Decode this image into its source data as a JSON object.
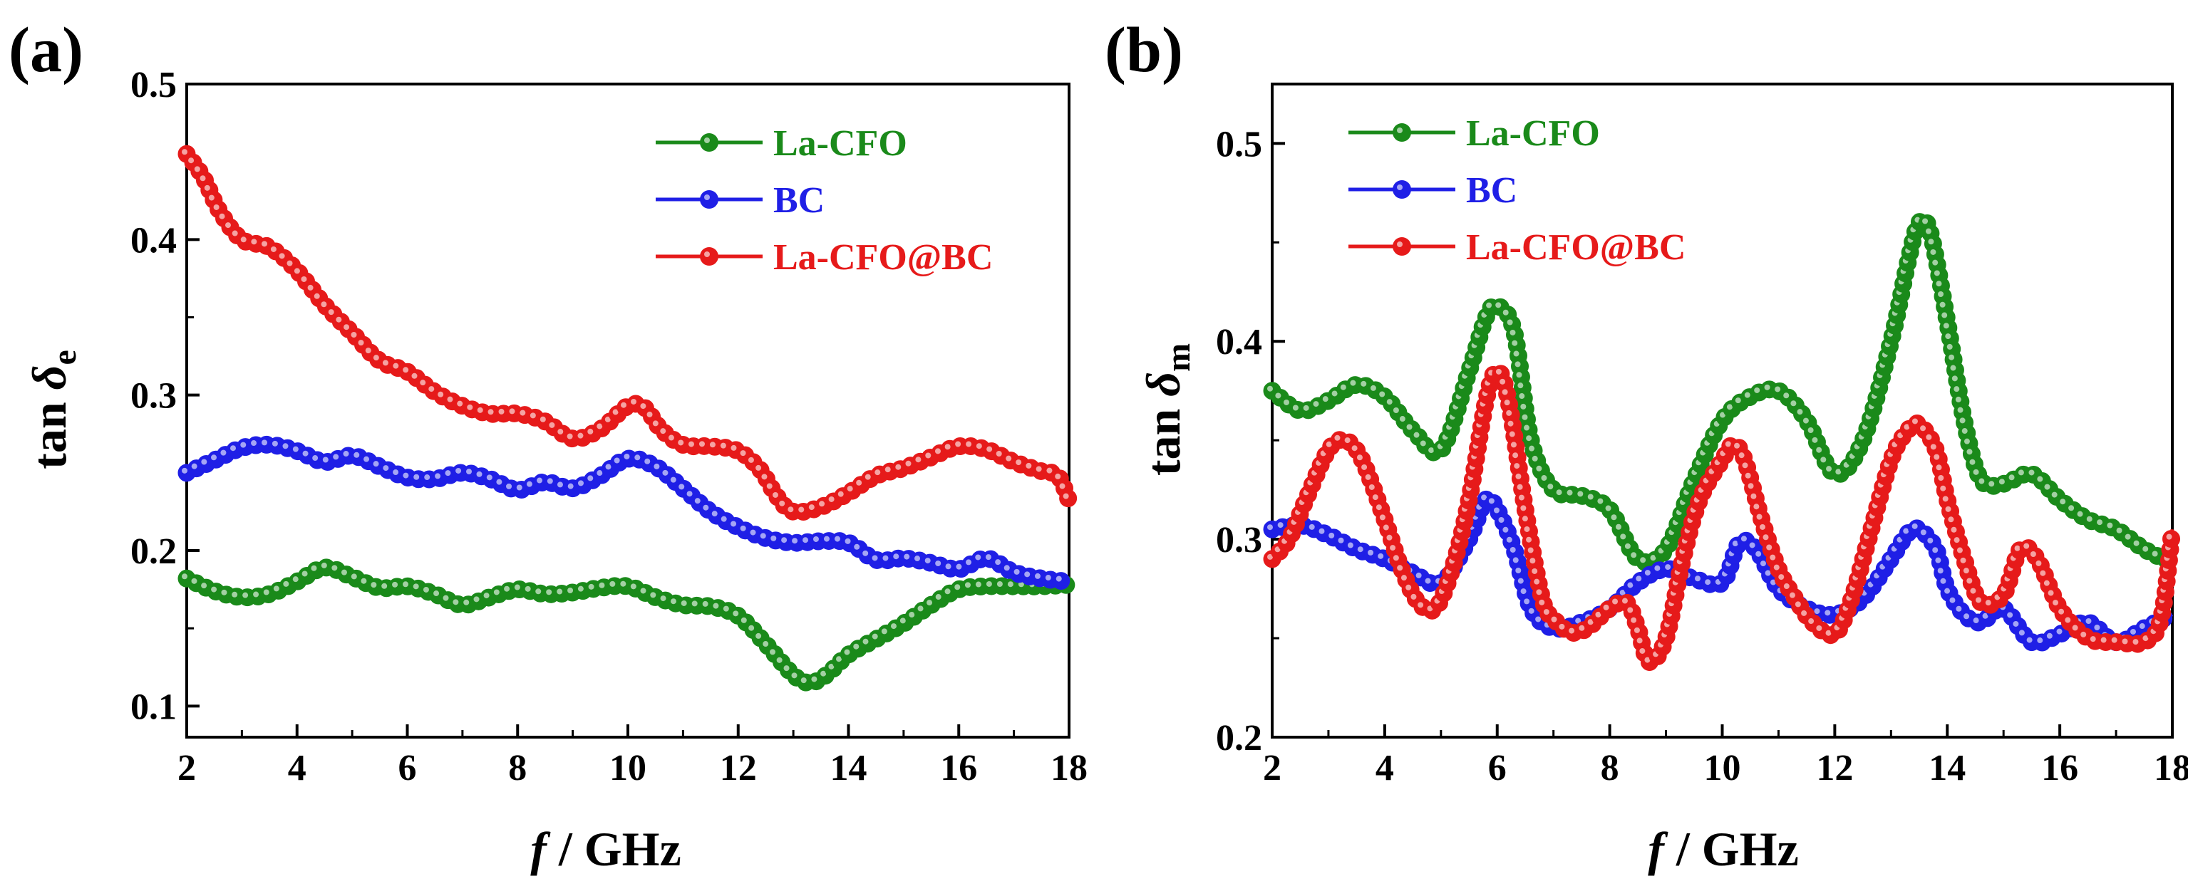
{
  "colors": {
    "La-CFO": "#1a8a1a",
    "BC": "#1f1fe6",
    "La-CFO@BC": "#e61a1a"
  },
  "chart_data": [
    {
      "type": "line",
      "panel_label": "(a)",
      "ylabel_prefix": "tan ",
      "ylabel_symbol": "δ",
      "ylabel_sub": "e",
      "xlabel_symbol": "f",
      "xlabel_unit": " / GHz",
      "xlim": [
        2,
        18
      ],
      "ylim": [
        0.08,
        0.5
      ],
      "xticks": [
        2,
        4,
        6,
        8,
        10,
        12,
        14,
        16,
        18
      ],
      "xtick_labels": [
        "2",
        "4",
        "6",
        "8",
        "10",
        "12",
        "14",
        "16",
        "18"
      ],
      "yticks": [
        0.1,
        0.2,
        0.3,
        0.4,
        0.5
      ],
      "ytick_labels": [
        "0.1",
        "0.2",
        "0.3",
        "0.4",
        "0.5"
      ],
      "legend_position": "top-right",
      "series": [
        {
          "name": "La-CFO",
          "x": [
            2,
            2.5,
            3,
            3.5,
            4,
            4.5,
            5,
            5.5,
            6,
            6.5,
            7,
            7.5,
            8,
            8.5,
            9,
            9.5,
            10,
            10.5,
            11,
            11.5,
            12,
            12.5,
            13,
            13.3,
            13.6,
            14,
            14.5,
            15,
            15.5,
            16,
            16.5,
            17,
            17.5,
            18
          ],
          "y": [
            0.182,
            0.174,
            0.17,
            0.172,
            0.18,
            0.189,
            0.183,
            0.176,
            0.177,
            0.172,
            0.165,
            0.17,
            0.175,
            0.172,
            0.173,
            0.176,
            0.177,
            0.17,
            0.165,
            0.164,
            0.158,
            0.14,
            0.12,
            0.115,
            0.12,
            0.133,
            0.143,
            0.153,
            0.165,
            0.175,
            0.177,
            0.177,
            0.177,
            0.178
          ]
        },
        {
          "name": "BC",
          "x": [
            2,
            2.5,
            3,
            3.5,
            4,
            4.5,
            5,
            5.5,
            6,
            6.5,
            7,
            7.5,
            8,
            8.5,
            9,
            9.5,
            10,
            10.5,
            11,
            11.5,
            12,
            12.5,
            13,
            13.5,
            14,
            14.5,
            15,
            15.5,
            16,
            16.5,
            17,
            17.5,
            18
          ],
          "y": [
            0.25,
            0.258,
            0.266,
            0.268,
            0.264,
            0.257,
            0.261,
            0.254,
            0.247,
            0.246,
            0.25,
            0.246,
            0.239,
            0.244,
            0.24,
            0.248,
            0.259,
            0.254,
            0.24,
            0.225,
            0.215,
            0.208,
            0.205,
            0.206,
            0.205,
            0.194,
            0.195,
            0.192,
            0.188,
            0.195,
            0.186,
            0.182,
            0.18
          ]
        },
        {
          "name": "La-CFO@BC",
          "x": [
            2,
            2.3,
            2.6,
            3,
            3.5,
            4,
            4.5,
            5,
            5.5,
            6,
            6.5,
            7,
            7.5,
            8,
            8.5,
            9,
            9.5,
            10,
            10.3,
            10.6,
            11,
            11.5,
            12,
            12.4,
            12.7,
            13,
            13.5,
            14,
            14.5,
            15,
            15.5,
            16,
            16.5,
            17,
            17.5,
            17.8,
            18
          ],
          "y": [
            0.455,
            0.44,
            0.418,
            0.4,
            0.395,
            0.38,
            0.358,
            0.34,
            0.322,
            0.315,
            0.302,
            0.293,
            0.288,
            0.288,
            0.283,
            0.272,
            0.278,
            0.293,
            0.292,
            0.278,
            0.268,
            0.267,
            0.264,
            0.252,
            0.235,
            0.225,
            0.228,
            0.237,
            0.248,
            0.253,
            0.26,
            0.267,
            0.265,
            0.257,
            0.251,
            0.248,
            0.232
          ]
        }
      ]
    },
    {
      "type": "line",
      "panel_label": "(b)",
      "ylabel_prefix": "tan ",
      "ylabel_symbol": "δ",
      "ylabel_sub": "m",
      "xlabel_symbol": "f",
      "xlabel_unit": " / GHz",
      "xlim": [
        2,
        18
      ],
      "ylim": [
        0.2,
        0.53
      ],
      "xticks": [
        2,
        4,
        6,
        8,
        10,
        12,
        14,
        16,
        18
      ],
      "xtick_labels": [
        "2",
        "4",
        "6",
        "8",
        "10",
        "12",
        "14",
        "16",
        "18"
      ],
      "yticks": [
        0.2,
        0.3,
        0.4,
        0.5
      ],
      "ytick_labels": [
        "0.2",
        "0.3",
        "0.4",
        "0.5"
      ],
      "legend_position": "top-left",
      "series": [
        {
          "name": "La-CFO",
          "x": [
            2,
            2.5,
            3,
            3.5,
            4,
            4.5,
            5,
            5.5,
            5.8,
            6,
            6.3,
            6.6,
            7,
            7.5,
            8,
            8.5,
            9,
            9.5,
            10,
            10.5,
            11,
            11.5,
            12,
            12.5,
            13,
            13.3,
            13.5,
            13.7,
            14,
            14.3,
            14.6,
            15,
            15.5,
            16,
            16.5,
            17,
            17.5,
            18
          ],
          "y": [
            0.375,
            0.365,
            0.37,
            0.378,
            0.372,
            0.355,
            0.345,
            0.385,
            0.412,
            0.418,
            0.405,
            0.35,
            0.325,
            0.322,
            0.315,
            0.29,
            0.295,
            0.33,
            0.36,
            0.372,
            0.375,
            0.36,
            0.333,
            0.35,
            0.4,
            0.44,
            0.46,
            0.455,
            0.41,
            0.36,
            0.33,
            0.328,
            0.333,
            0.32,
            0.31,
            0.305,
            0.295,
            0.288
          ]
        },
        {
          "name": "BC",
          "x": [
            2,
            2.5,
            3,
            3.5,
            4,
            4.5,
            5,
            5.5,
            5.8,
            6,
            6.3,
            6.6,
            7,
            7.5,
            8,
            8.5,
            9,
            9.5,
            10,
            10.3,
            10.6,
            11,
            11.5,
            12,
            12.5,
            13,
            13.3,
            13.5,
            13.8,
            14,
            14.3,
            14.6,
            15,
            15.5,
            16,
            16.5,
            17,
            17.5,
            18
          ],
          "y": [
            0.305,
            0.307,
            0.302,
            0.295,
            0.29,
            0.283,
            0.278,
            0.3,
            0.32,
            0.315,
            0.295,
            0.265,
            0.255,
            0.258,
            0.265,
            0.278,
            0.285,
            0.28,
            0.278,
            0.298,
            0.295,
            0.275,
            0.265,
            0.262,
            0.27,
            0.29,
            0.303,
            0.305,
            0.295,
            0.275,
            0.262,
            0.258,
            0.265,
            0.248,
            0.252,
            0.258,
            0.248,
            0.255,
            0.262
          ]
        },
        {
          "name": "La-CFO@BC",
          "x": [
            2,
            2.3,
            2.6,
            3,
            3.3,
            3.6,
            4,
            4.3,
            4.6,
            4.9,
            5.2,
            5.5,
            5.8,
            6,
            6.2,
            6.5,
            6.8,
            7,
            7.3,
            7.6,
            8,
            8.3,
            8.5,
            8.7,
            9,
            9.3,
            9.6,
            10,
            10.2,
            10.4,
            10.7,
            11,
            11.3,
            11.6,
            12,
            12.3,
            12.6,
            13,
            13.3,
            13.5,
            13.8,
            14,
            14.3,
            14.6,
            15,
            15.3,
            15.6,
            16,
            16.5,
            17,
            17.5,
            17.8,
            18
          ],
          "y": [
            0.29,
            0.3,
            0.32,
            0.345,
            0.35,
            0.34,
            0.31,
            0.285,
            0.268,
            0.265,
            0.285,
            0.32,
            0.37,
            0.385,
            0.37,
            0.315,
            0.27,
            0.26,
            0.253,
            0.255,
            0.265,
            0.268,
            0.255,
            0.238,
            0.25,
            0.29,
            0.32,
            0.34,
            0.348,
            0.34,
            0.31,
            0.285,
            0.27,
            0.258,
            0.252,
            0.27,
            0.3,
            0.34,
            0.355,
            0.358,
            0.345,
            0.32,
            0.29,
            0.268,
            0.272,
            0.295,
            0.29,
            0.265,
            0.25,
            0.248,
            0.248,
            0.26,
            0.305
          ]
        }
      ]
    }
  ]
}
